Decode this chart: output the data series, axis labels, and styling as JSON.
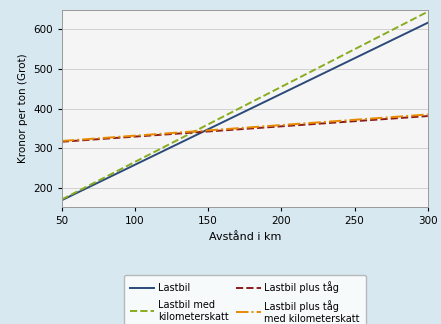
{
  "x_start": 50,
  "x_end": 300,
  "xlim": [
    50,
    300
  ],
  "ylim": [
    150,
    650
  ],
  "yticks": [
    200,
    300,
    400,
    500,
    600
  ],
  "xticks": [
    50,
    100,
    150,
    200,
    250,
    300
  ],
  "xlabel": "Avstånd i km",
  "ylabel": "Kronor per ton (Grot)",
  "bg_color": "#d8e8f0",
  "plot_bg_color": "#f5f5f5",
  "lines": [
    {
      "label": "Lastbil",
      "color": "#2b4a7a",
      "linestyle": "solid",
      "linewidth": 1.4,
      "y_at_50": 168,
      "slope": 1.796
    },
    {
      "label": "Lastbil med\nkilometerskatt",
      "color": "#8aac20",
      "linestyle": "dashed",
      "linewidth": 1.4,
      "y_at_50": 170,
      "slope": 1.9
    },
    {
      "label": "Lastbil plus tåg",
      "color": "#8b1a1a",
      "linestyle": "dashed",
      "linewidth": 1.4,
      "y_at_50": 316,
      "slope": 0.26
    },
    {
      "label": "Lastbil plus tåg\nmed kilometerskatt",
      "color": "#e88a00",
      "linestyle": "dashdot",
      "linewidth": 1.4,
      "y_at_50": 318,
      "slope": 0.268
    }
  ]
}
